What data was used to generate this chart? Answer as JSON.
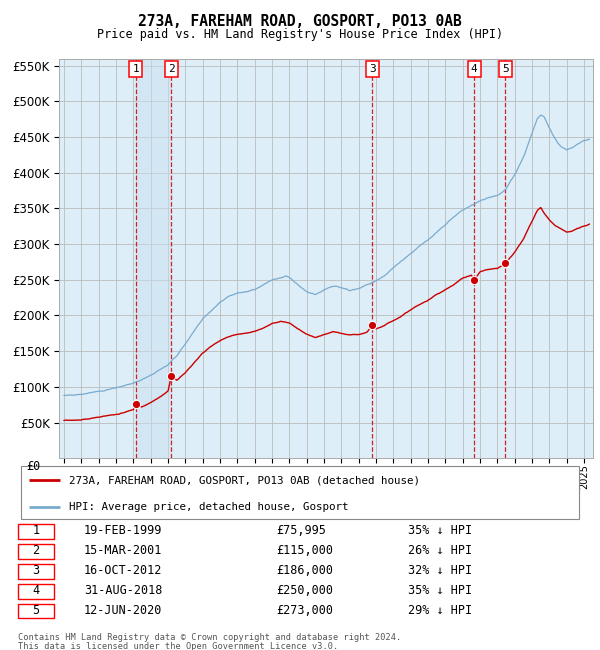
{
  "title": "273A, FAREHAM ROAD, GOSPORT, PO13 0AB",
  "subtitle": "Price paid vs. HM Land Registry's House Price Index (HPI)",
  "footer1": "Contains HM Land Registry data © Crown copyright and database right 2024.",
  "footer2": "This data is licensed under the Open Government Licence v3.0.",
  "legend_property": "273A, FAREHAM ROAD, GOSPORT, PO13 0AB (detached house)",
  "legend_hpi": "HPI: Average price, detached house, Gosport",
  "property_color": "#cc0000",
  "hpi_color": "#7aabcf",
  "sale_points": [
    {
      "label": "1",
      "date": "1999-02-19",
      "price": 75995,
      "x": 1999.13
    },
    {
      "label": "2",
      "date": "2001-03-15",
      "price": 115000,
      "x": 2001.2
    },
    {
      "label": "3",
      "date": "2012-10-16",
      "price": 186000,
      "x": 2012.79
    },
    {
      "label": "4",
      "date": "2018-08-31",
      "price": 250000,
      "x": 2018.66
    },
    {
      "label": "5",
      "date": "2020-06-12",
      "price": 273000,
      "x": 2020.45
    }
  ],
  "sale_table": [
    {
      "num": "1",
      "date": "19-FEB-1999",
      "price": "£75,995",
      "pct": "35% ↓ HPI"
    },
    {
      "num": "2",
      "date": "15-MAR-2001",
      "price": "£115,000",
      "pct": "26% ↓ HPI"
    },
    {
      "num": "3",
      "date": "16-OCT-2012",
      "price": "£186,000",
      "pct": "32% ↓ HPI"
    },
    {
      "num": "4",
      "date": "31-AUG-2018",
      "price": "£250,000",
      "pct": "35% ↓ HPI"
    },
    {
      "num": "5",
      "date": "12-JUN-2020",
      "price": "£273,000",
      "pct": "29% ↓ HPI"
    }
  ],
  "ylim": [
    0,
    560000
  ],
  "chart_ymin": 45000,
  "chart_ymax": 560000,
  "yticks": [
    50000,
    100000,
    150000,
    200000,
    250000,
    300000,
    350000,
    400000,
    450000,
    500000,
    550000
  ],
  "xlim_start": 1994.7,
  "xlim_end": 2025.5,
  "grid_color": "#cccccc",
  "background_color": "#ddeef8"
}
